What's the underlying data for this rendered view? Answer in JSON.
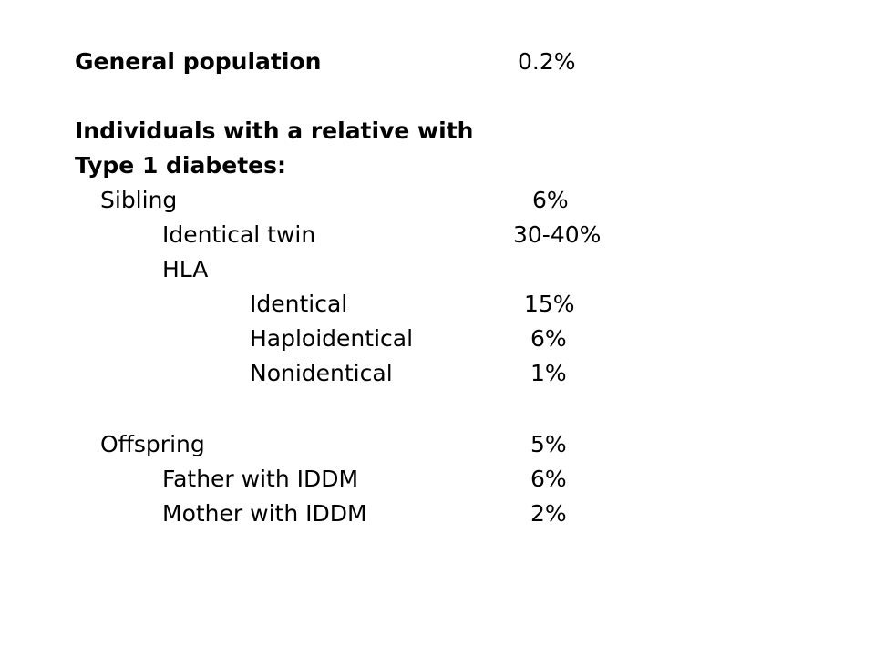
{
  "general": {
    "label": "General population",
    "value": "0.2%"
  },
  "heading": {
    "line1": "Individuals with a relative with",
    "line2": "Type 1 diabetes:"
  },
  "sibling": {
    "label": "Sibling",
    "value": "6%",
    "identical_twin": {
      "label": "Identical twin",
      "value": "30-40%"
    },
    "hla": {
      "label": "HLA",
      "identical": {
        "label": "Identical",
        "value": "15%"
      },
      "haploidentical": {
        "label": "Haploidentical",
        "value": "6%"
      },
      "nonidentical": {
        "label": "Nonidentical",
        "value": "1%"
      }
    }
  },
  "offspring": {
    "label": "Offspring",
    "value": "5%",
    "father": {
      "label": "Father with IDDM",
      "value": "6%"
    },
    "mother": {
      "label": "Mother with IDDM",
      "value": "2%"
    }
  }
}
